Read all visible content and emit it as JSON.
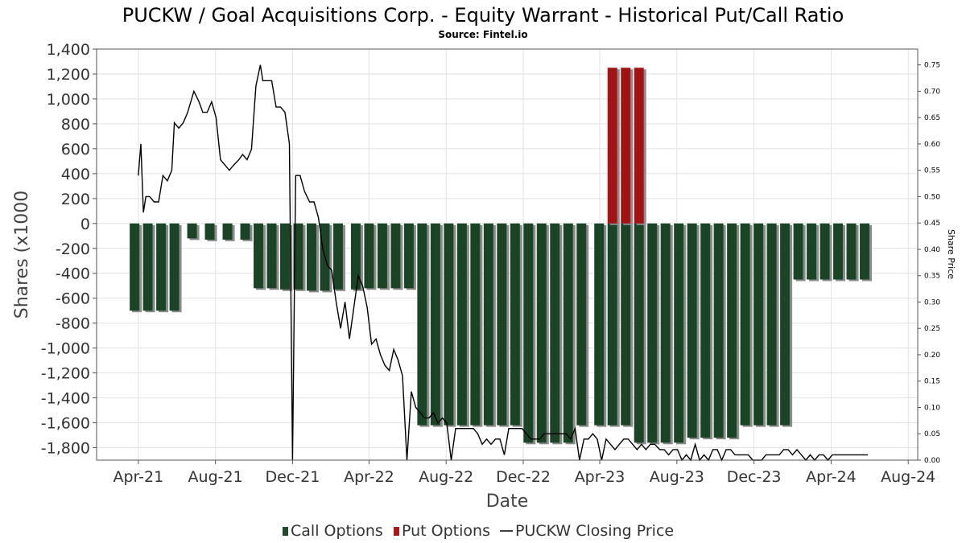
{
  "chart_data": {
    "type": "bar",
    "title": "PUCKW / Goal Acquisitions Corp. - Equity Warrant - Historical Put/Call Ratio",
    "subtitle": "Source: Fintel.io",
    "xlabel": "Date",
    "ylabel": "Shares (x1000",
    "y2label": "Share Price",
    "ylim": [
      -1900,
      1400
    ],
    "y_ticks": [
      1400,
      1200,
      1000,
      800,
      600,
      400,
      200,
      0,
      -200,
      -400,
      -600,
      -800,
      -1000,
      -1200,
      -1400,
      -1600,
      -1800
    ],
    "y_tick_labels": [
      "1,400",
      "1,200",
      "1,000",
      "800",
      "600",
      "400",
      "200",
      "0",
      "-200",
      "-400",
      "-600",
      "-800",
      "-1,000",
      "-1,200",
      "-1,400",
      "-1,600",
      "-1,800"
    ],
    "y2lim": [
      0.0,
      0.78
    ],
    "y2_ticks": [
      0.75,
      0.7,
      0.65,
      0.6,
      0.55,
      0.5,
      0.45,
      0.4,
      0.35,
      0.3,
      0.25,
      0.2,
      0.15,
      0.1,
      0.05,
      0.0
    ],
    "y2_tick_labels": [
      "0.75",
      "0.70",
      "0.65",
      "0.60",
      "0.55",
      "0.50",
      "0.45",
      "0.40",
      "0.35",
      "0.30",
      "0.25",
      "0.20",
      "0.15",
      "0.10",
      "0.05",
      "0.00"
    ],
    "xlim": [
      "2021-01-25",
      "2024-08-16"
    ],
    "x_ticks": [
      "2021-04-01",
      "2021-08-01",
      "2021-12-01",
      "2022-04-01",
      "2022-08-01",
      "2022-12-01",
      "2023-04-01",
      "2023-08-01",
      "2023-12-01",
      "2024-04-01",
      "2024-08-01"
    ],
    "x_tick_labels": [
      "Apr-21",
      "Aug-21",
      "Dec-21",
      "Apr-22",
      "Aug-22",
      "Dec-22",
      "Apr-23",
      "Aug-23",
      "Dec-23",
      "Apr-24",
      "Aug-24"
    ],
    "grid": true,
    "legend_position": "bottom-center",
    "colors": {
      "call": "#1e4a2a",
      "put": "#b11616",
      "price": "#000000",
      "bar_shadow": "#8c8c8c",
      "grid": "#e2e2e2"
    },
    "series": [
      {
        "name": "Call Options",
        "type": "bar",
        "x": [
          "2021-03-26",
          "2021-04-16",
          "2021-05-07",
          "2021-05-28",
          "2021-06-25",
          "2021-07-23",
          "2021-08-20",
          "2021-09-17",
          "2021-10-08",
          "2021-10-29",
          "2021-11-19",
          "2021-12-10",
          "2021-12-31",
          "2022-01-21",
          "2022-02-11",
          "2022-03-11",
          "2022-04-01",
          "2022-04-22",
          "2022-05-13",
          "2022-06-03",
          "2022-06-24",
          "2022-07-15",
          "2022-08-05",
          "2022-08-26",
          "2022-09-16",
          "2022-10-07",
          "2022-10-28",
          "2022-11-18",
          "2022-12-09",
          "2022-12-30",
          "2023-01-20",
          "2023-02-10",
          "2023-03-03",
          "2023-03-31",
          "2023-04-21",
          "2023-05-12",
          "2023-06-02",
          "2023-06-23",
          "2023-07-14",
          "2023-08-04",
          "2023-08-25",
          "2023-09-15",
          "2023-10-06",
          "2023-10-27",
          "2023-11-17",
          "2023-12-08",
          "2023-12-29",
          "2024-01-19",
          "2024-02-09",
          "2024-03-01",
          "2024-03-22",
          "2024-04-12",
          "2024-05-03",
          "2024-05-24"
        ],
        "values": [
          -700,
          -700,
          -700,
          -700,
          -120,
          -130,
          -130,
          -130,
          -520,
          -520,
          -530,
          -530,
          -540,
          -540,
          -530,
          -530,
          -520,
          -520,
          -520,
          -520,
          -1620,
          -1620,
          -1620,
          -1620,
          -1620,
          -1620,
          -1620,
          -1620,
          -1760,
          -1760,
          -1760,
          -1760,
          -1620,
          -1620,
          -1620,
          -1620,
          -1760,
          -1760,
          -1760,
          -1760,
          -1720,
          -1720,
          -1720,
          -1720,
          -1620,
          -1620,
          -1620,
          -1620,
          -450,
          -450,
          -450,
          -450,
          -450,
          -450
        ]
      },
      {
        "name": "Put Options",
        "type": "bar",
        "x": [
          "2023-04-21",
          "2023-05-12",
          "2023-06-02"
        ],
        "values": [
          1250,
          1250,
          1250
        ]
      },
      {
        "name": "PUCKW Closing Price",
        "type": "line",
        "x": [
          "2021-04-01",
          "2021-04-05",
          "2021-04-09",
          "2021-04-13",
          "2021-04-19",
          "2021-04-26",
          "2021-05-03",
          "2021-05-10",
          "2021-05-17",
          "2021-05-24",
          "2021-05-28",
          "2021-06-04",
          "2021-06-11",
          "2021-06-18",
          "2021-06-28",
          "2021-07-06",
          "2021-07-12",
          "2021-07-19",
          "2021-07-26",
          "2021-08-02",
          "2021-08-09",
          "2021-08-16",
          "2021-08-23",
          "2021-08-30",
          "2021-09-07",
          "2021-09-13",
          "2021-09-20",
          "2021-09-27",
          "2021-10-04",
          "2021-10-11",
          "2021-10-15",
          "2021-10-22",
          "2021-10-29",
          "2021-11-05",
          "2021-11-12",
          "2021-11-19",
          "2021-11-26",
          "2021-12-01",
          "2021-12-06",
          "2021-12-13",
          "2021-12-20",
          "2021-12-28",
          "2022-01-04",
          "2022-01-11",
          "2022-01-18",
          "2022-01-25",
          "2022-02-01",
          "2022-02-08",
          "2022-02-15",
          "2022-02-22",
          "2022-03-01",
          "2022-03-08",
          "2022-03-15",
          "2022-03-22",
          "2022-03-29",
          "2022-04-05",
          "2022-04-12",
          "2022-04-19",
          "2022-04-26",
          "2022-05-03",
          "2022-05-10",
          "2022-05-17",
          "2022-05-24",
          "2022-05-31",
          "2022-06-07",
          "2022-06-14",
          "2022-06-21",
          "2022-06-28",
          "2022-07-05",
          "2022-07-12",
          "2022-07-19",
          "2022-07-26",
          "2022-08-02",
          "2022-08-09",
          "2022-08-16",
          "2022-08-23",
          "2022-08-30",
          "2022-09-06",
          "2022-09-13",
          "2022-09-20",
          "2022-09-27",
          "2022-10-04",
          "2022-10-11",
          "2022-10-18",
          "2022-10-25",
          "2022-11-01",
          "2022-11-08",
          "2022-11-15",
          "2022-11-22",
          "2022-11-29",
          "2022-12-06",
          "2022-12-13",
          "2022-12-20",
          "2022-12-27",
          "2023-01-03",
          "2023-01-10",
          "2023-01-17",
          "2023-01-24",
          "2023-01-31",
          "2023-02-07",
          "2023-02-14",
          "2023-02-21",
          "2023-02-28",
          "2023-03-07",
          "2023-03-14",
          "2023-03-21",
          "2023-03-28",
          "2023-04-04",
          "2023-04-11",
          "2023-04-18",
          "2023-04-25",
          "2023-05-02",
          "2023-05-09",
          "2023-05-16",
          "2023-05-23",
          "2023-05-30",
          "2023-06-06",
          "2023-06-13",
          "2023-06-20",
          "2023-06-27",
          "2023-07-05",
          "2023-07-12",
          "2023-07-19",
          "2023-07-26",
          "2023-08-02",
          "2023-08-09",
          "2023-08-16",
          "2023-08-23",
          "2023-08-30",
          "2023-09-06",
          "2023-09-13",
          "2023-09-20",
          "2023-09-27",
          "2023-10-04",
          "2023-10-11",
          "2023-10-18",
          "2023-10-25",
          "2023-11-01",
          "2023-11-08",
          "2023-11-15",
          "2023-11-22",
          "2023-11-29",
          "2023-12-06",
          "2023-12-13",
          "2023-12-20",
          "2023-12-27",
          "2024-01-03",
          "2024-01-10",
          "2024-01-17",
          "2024-01-24",
          "2024-01-31",
          "2024-02-07",
          "2024-02-14",
          "2024-02-21",
          "2024-02-28",
          "2024-03-06",
          "2024-03-13",
          "2024-03-20",
          "2024-03-27",
          "2024-04-03",
          "2024-04-10",
          "2024-04-17",
          "2024-04-24",
          "2024-05-01",
          "2024-05-08",
          "2024-05-15",
          "2024-05-22",
          "2024-05-29"
        ],
        "values": [
          0.54,
          0.6,
          0.47,
          0.5,
          0.5,
          0.49,
          0.49,
          0.54,
          0.53,
          0.55,
          0.64,
          0.63,
          0.64,
          0.66,
          0.7,
          0.68,
          0.66,
          0.66,
          0.68,
          0.65,
          0.57,
          0.56,
          0.55,
          0.56,
          0.57,
          0.58,
          0.57,
          0.59,
          0.71,
          0.75,
          0.72,
          0.72,
          0.72,
          0.67,
          0.67,
          0.66,
          0.6,
          0.0,
          0.54,
          0.54,
          0.51,
          0.49,
          0.49,
          0.46,
          0.4,
          0.37,
          0.36,
          0.3,
          0.25,
          0.3,
          0.23,
          0.29,
          0.35,
          0.33,
          0.29,
          0.22,
          0.23,
          0.2,
          0.18,
          0.17,
          0.21,
          0.19,
          0.16,
          0.0,
          0.13,
          0.1,
          0.09,
          0.08,
          0.08,
          0.09,
          0.07,
          0.08,
          0.07,
          0.0,
          0.06,
          0.06,
          0.06,
          0.06,
          0.06,
          0.05,
          0.03,
          0.04,
          0.03,
          0.04,
          0.04,
          0.01,
          0.06,
          0.06,
          0.06,
          0.06,
          0.05,
          0.04,
          0.04,
          0.04,
          0.05,
          0.05,
          0.05,
          0.05,
          0.05,
          0.05,
          0.04,
          0.06,
          0.0,
          0.04,
          0.04,
          0.05,
          0.04,
          0.0,
          0.04,
          0.03,
          0.02,
          0.03,
          0.04,
          0.04,
          0.03,
          0.02,
          0.03,
          0.02,
          0.03,
          0.03,
          0.02,
          0.02,
          0.01,
          0.02,
          0.02,
          0.0,
          0.01,
          0.0,
          0.03,
          0.0,
          0.01,
          0.0,
          0.02,
          0.02,
          0.0,
          0.02,
          0.02,
          0.01,
          0.01,
          0.01,
          0.01,
          0.0,
          0.0,
          0.0,
          0.01,
          0.01,
          0.01,
          0.01,
          0.02,
          0.02,
          0.01,
          0.02,
          0.01,
          0.0,
          0.01,
          0.0,
          0.01,
          0.01,
          0.0,
          0.01,
          0.01,
          0.01,
          0.01,
          0.01,
          0.01,
          0.01,
          0.01,
          0.01
        ]
      }
    ]
  }
}
